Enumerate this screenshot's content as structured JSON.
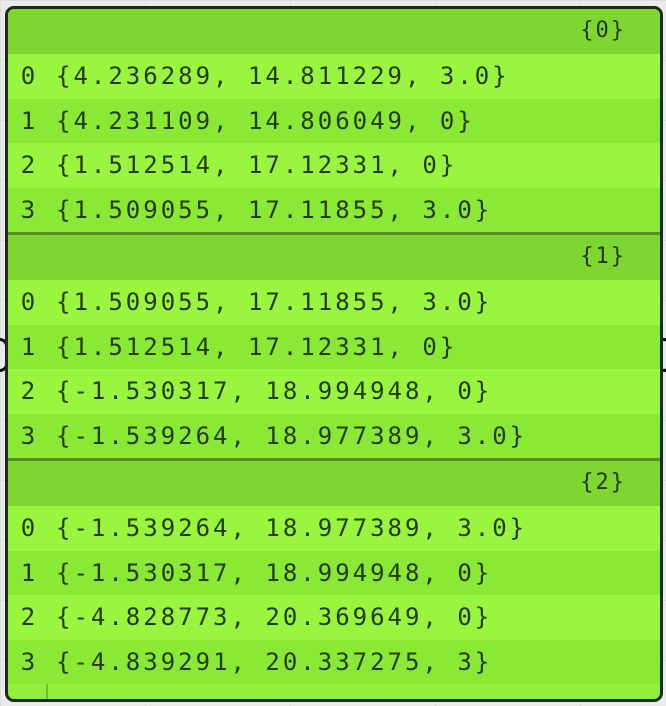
{
  "panel": {
    "branches": [
      {
        "path": "{0}",
        "items": [
          {
            "index": "0",
            "value": "{4.236289, 14.811229, 3.0}"
          },
          {
            "index": "1",
            "value": "{4.231109, 14.806049, 0}"
          },
          {
            "index": "2",
            "value": "{1.512514, 17.12331, 0}"
          },
          {
            "index": "3",
            "value": "{1.509055, 17.11855, 3.0}"
          }
        ]
      },
      {
        "path": "{1}",
        "items": [
          {
            "index": "0",
            "value": "{1.509055, 17.11855, 3.0}"
          },
          {
            "index": "1",
            "value": "{1.512514, 17.12331, 0}"
          },
          {
            "index": "2",
            "value": "{-1.530317, 18.994948, 0}"
          },
          {
            "index": "3",
            "value": "{-1.539264, 18.977389, 3.0}"
          }
        ]
      },
      {
        "path": "{2}",
        "items": [
          {
            "index": "0",
            "value": "{-1.539264, 18.977389, 3.0}"
          },
          {
            "index": "1",
            "value": "{-1.530317, 18.994948, 0}"
          },
          {
            "index": "2",
            "value": "{-4.828773, 20.369649, 0}"
          },
          {
            "index": "3",
            "value": "{-4.839291, 20.337275, 3}"
          }
        ]
      }
    ]
  },
  "colors": {
    "panel_bg": "#92f03a",
    "header_bg": "#7fd630",
    "text": "#233a14",
    "border": "#1e2a1a"
  }
}
